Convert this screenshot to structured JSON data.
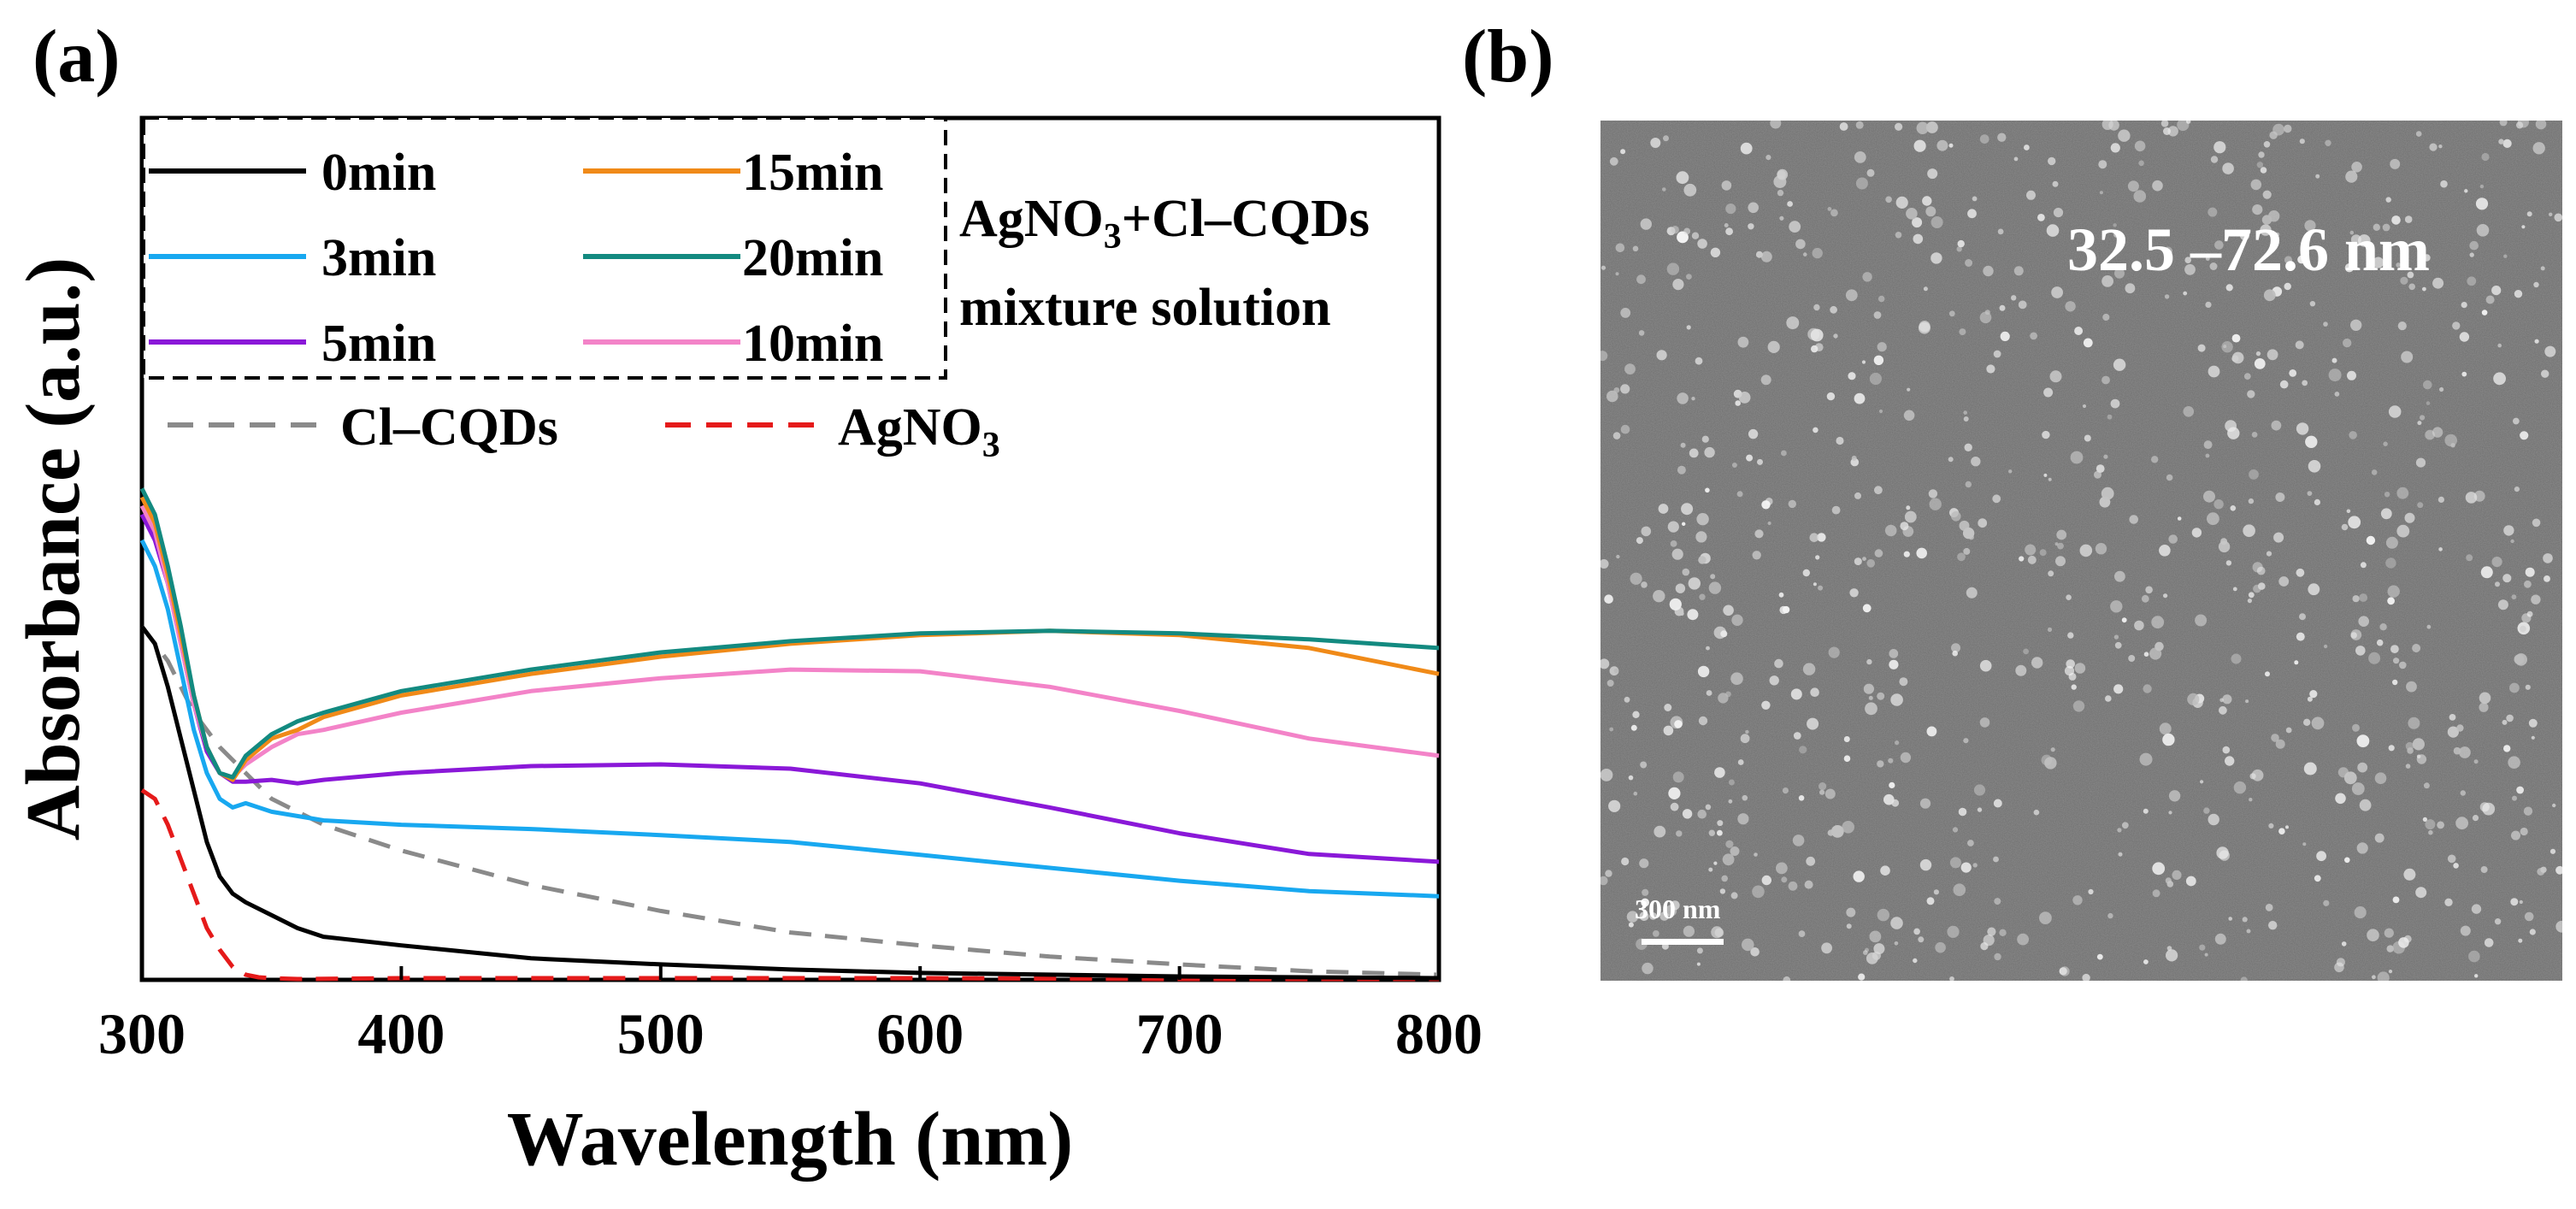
{
  "figure": {
    "panel_a_label": "(a)",
    "panel_b_label": "(b)"
  },
  "chart_data": {
    "type": "line",
    "title": "",
    "xlabel": "Wavelength (nm)",
    "ylabel": "Absorbance (a.u.)",
    "xlim": [
      300,
      800
    ],
    "ylim": [
      0,
      1.0
    ],
    "xticks": [
      300,
      400,
      500,
      600,
      700,
      800
    ],
    "xtick_labels": [
      "300",
      "400",
      "500",
      "600",
      "700",
      "800"
    ],
    "yticks_shown": false,
    "legend_group_note": "AgNO3+Cl–CQDs mixture solution",
    "series": [
      {
        "name": "0min",
        "style": "solid",
        "color": "#000000",
        "x": [
          300,
          305,
          310,
          315,
          320,
          325,
          330,
          335,
          340,
          350,
          360,
          370,
          400,
          450,
          500,
          550,
          600,
          700,
          800
        ],
        "y": [
          0.41,
          0.39,
          0.34,
          0.28,
          0.22,
          0.16,
          0.12,
          0.1,
          0.09,
          0.075,
          0.06,
          0.05,
          0.04,
          0.025,
          0.018,
          0.012,
          0.008,
          0.004,
          0.002
        ]
      },
      {
        "name": "3min",
        "style": "solid",
        "color": "#18a8f0",
        "x": [
          300,
          305,
          310,
          315,
          320,
          325,
          330,
          335,
          340,
          350,
          370,
          400,
          450,
          500,
          550,
          600,
          650,
          700,
          750,
          800
        ],
        "y": [
          0.51,
          0.48,
          0.43,
          0.36,
          0.29,
          0.24,
          0.21,
          0.2,
          0.205,
          0.195,
          0.185,
          0.18,
          0.175,
          0.168,
          0.16,
          0.145,
          0.13,
          0.115,
          0.103,
          0.097
        ]
      },
      {
        "name": "5min",
        "style": "solid",
        "color": "#8a18d8",
        "x": [
          300,
          305,
          310,
          315,
          320,
          325,
          330,
          335,
          340,
          350,
          360,
          370,
          400,
          450,
          500,
          550,
          600,
          650,
          700,
          750,
          800
        ],
        "y": [
          0.54,
          0.51,
          0.46,
          0.39,
          0.32,
          0.265,
          0.24,
          0.23,
          0.23,
          0.232,
          0.228,
          0.232,
          0.24,
          0.248,
          0.25,
          0.245,
          0.228,
          0.2,
          0.17,
          0.146,
          0.137
        ]
      },
      {
        "name": "15min",
        "style": "solid",
        "color": "#f08a18",
        "x": [
          300,
          305,
          310,
          315,
          320,
          325,
          330,
          335,
          340,
          350,
          360,
          370,
          400,
          450,
          500,
          550,
          600,
          650,
          700,
          750,
          800
        ],
        "y": [
          0.56,
          0.53,
          0.47,
          0.4,
          0.33,
          0.27,
          0.24,
          0.232,
          0.255,
          0.28,
          0.29,
          0.305,
          0.33,
          0.355,
          0.375,
          0.39,
          0.4,
          0.405,
          0.4,
          0.385,
          0.355
        ]
      },
      {
        "name": "20min",
        "style": "solid",
        "color": "#138a80",
        "x": [
          300,
          305,
          310,
          315,
          320,
          325,
          330,
          335,
          340,
          350,
          360,
          370,
          400,
          450,
          500,
          550,
          600,
          650,
          700,
          750,
          800
        ],
        "y": [
          0.57,
          0.54,
          0.48,
          0.41,
          0.33,
          0.27,
          0.24,
          0.235,
          0.26,
          0.285,
          0.3,
          0.31,
          0.335,
          0.36,
          0.38,
          0.393,
          0.402,
          0.405,
          0.402,
          0.395,
          0.385
        ]
      },
      {
        "name": "10min",
        "style": "solid",
        "color": "#f383c8",
        "x": [
          300,
          305,
          310,
          315,
          320,
          325,
          330,
          335,
          340,
          350,
          360,
          370,
          400,
          450,
          500,
          550,
          600,
          650,
          700,
          750,
          800
        ],
        "y": [
          0.55,
          0.52,
          0.46,
          0.39,
          0.32,
          0.27,
          0.24,
          0.235,
          0.25,
          0.27,
          0.285,
          0.29,
          0.31,
          0.335,
          0.35,
          0.36,
          0.358,
          0.34,
          0.312,
          0.28,
          0.26
        ]
      },
      {
        "name": "Cl–CQDs",
        "style": "dashed",
        "color": "#8a8a8a",
        "x": [
          300,
          310,
          320,
          330,
          340,
          350,
          360,
          370,
          400,
          450,
          500,
          550,
          600,
          650,
          700,
          750,
          800
        ],
        "y": [
          0.41,
          0.37,
          0.31,
          0.27,
          0.24,
          0.21,
          0.195,
          0.18,
          0.15,
          0.11,
          0.08,
          0.055,
          0.04,
          0.027,
          0.018,
          0.01,
          0.006
        ]
      },
      {
        "name": "AgNO3",
        "style": "dashed",
        "color": "#e51a1a",
        "x": [
          300,
          305,
          310,
          315,
          320,
          325,
          330,
          335,
          340,
          345,
          350,
          360,
          400,
          500,
          600,
          700,
          800
        ],
        "y": [
          0.22,
          0.21,
          0.18,
          0.14,
          0.1,
          0.06,
          0.035,
          0.015,
          0.006,
          0.003,
          0.002,
          0.001,
          0.002,
          0.002,
          0.002,
          0.001,
          0.001
        ]
      }
    ],
    "legend": {
      "main": [
        "0min",
        "15min",
        "3min",
        "20min",
        "5min",
        "10min"
      ],
      "note_line1": "AgNO",
      "note_sub": "3",
      "note_line1_rest": "+Cl–CQDs",
      "note_line2": "mixture solution",
      "extra_1": "Cl–CQDs",
      "extra_2_main": "AgNO",
      "extra_2_sub": "3"
    }
  },
  "sem_image": {
    "size_range_label": "32.5 –72.6 nm",
    "scale_bar_label": "300 nm"
  }
}
